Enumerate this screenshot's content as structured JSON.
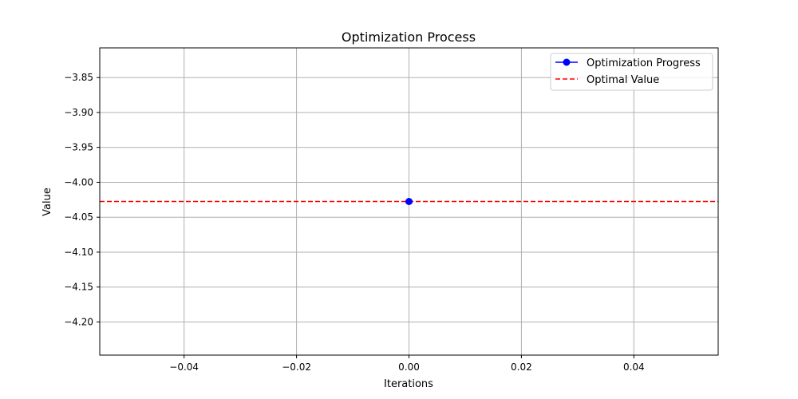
{
  "chart_data": {
    "type": "line",
    "title": "Optimization Process",
    "xlabel": "Iterations",
    "ylabel": "Value",
    "xlim": [
      -0.055,
      0.055
    ],
    "ylim": [
      -4.2475,
      -3.8075
    ],
    "x_ticks": [
      -0.04,
      -0.02,
      0.0,
      0.02,
      0.04
    ],
    "x_tick_labels": [
      "−0.04",
      "−0.02",
      "0.00",
      "0.02",
      "0.04"
    ],
    "y_ticks": [
      -3.85,
      -3.9,
      -3.95,
      -4.0,
      -4.05,
      -4.1,
      -4.15,
      -4.2
    ],
    "y_tick_labels": [
      "−3.85",
      "−3.90",
      "−3.95",
      "−4.00",
      "−4.05",
      "−4.10",
      "−4.15",
      "−4.20"
    ],
    "grid": true,
    "legend_position": "top-right",
    "series": [
      {
        "name": "Optimization Progress",
        "style": "solid-with-circle-markers",
        "color": "#0000ff",
        "x": [
          0.0
        ],
        "y": [
          -4.0275
        ]
      }
    ],
    "reference_lines": [
      {
        "name": "Optimal Value",
        "orientation": "horizontal",
        "style": "dashed",
        "color": "#ff0000",
        "y": -4.0275
      }
    ]
  }
}
